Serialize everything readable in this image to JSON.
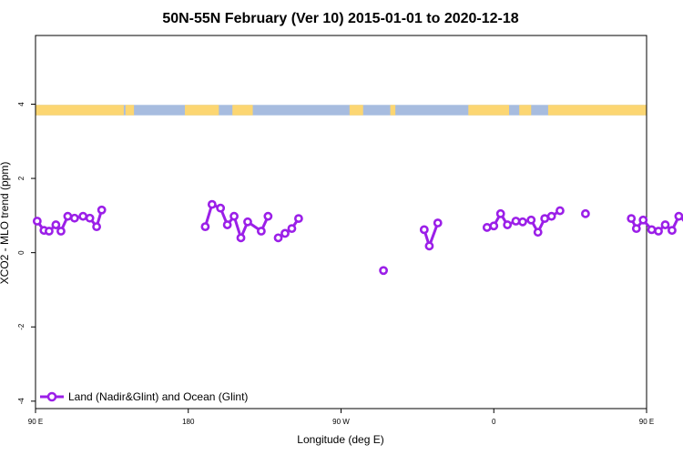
{
  "chart_data": {
    "type": "line",
    "title": "50N-55N February (Ver 10)   2015-01-01 to 2020-12-18",
    "xlabel": "Longitude (deg E)",
    "ylabel": "XCO2 - MLO trend (ppm)",
    "xlim": [
      90,
      450
    ],
    "ylim": [
      -4.2,
      5.85
    ],
    "xticks": [
      {
        "value": 90,
        "label": "90 E"
      },
      {
        "value": 180,
        "label": "180"
      },
      {
        "value": 270,
        "label": "90 W"
      },
      {
        "value": 360,
        "label": "0"
      },
      {
        "value": 450,
        "label": "90 E"
      },
      {
        "value": 540,
        "label": "180"
      }
    ],
    "yticks": [
      {
        "value": -4,
        "label": "-4"
      },
      {
        "value": -2,
        "label": "-2"
      },
      {
        "value": 0,
        "label": "0"
      },
      {
        "value": 2,
        "label": "2"
      },
      {
        "value": 4,
        "label": "4"
      }
    ],
    "land_ocean_strip": {
      "y_range": [
        3.7,
        3.98
      ],
      "land_color": "#fcd672",
      "ocean_color": "#a7bcdf",
      "land_lon_ranges": [
        [
          90,
          142
        ],
        [
          143,
          148
        ],
        [
          178,
          198
        ],
        [
          206,
          218
        ],
        [
          275,
          283
        ],
        [
          299,
          302
        ],
        [
          345,
          369
        ],
        [
          375,
          382
        ],
        [
          392,
          482
        ],
        [
          487,
          492
        ],
        [
          493,
          508
        ],
        [
          528,
          546
        ]
      ]
    },
    "series": [
      {
        "name": "Land (Nadir&Glint) and Ocean (Glint)",
        "color": "#9b1fe8",
        "segments": [
          [
            [
              91,
              0.85
            ],
            [
              95,
              0.6
            ],
            [
              98,
              0.58
            ],
            [
              102,
              0.75
            ],
            [
              105,
              0.58
            ],
            [
              109,
              0.98
            ],
            [
              113,
              0.93
            ],
            [
              118,
              0.98
            ],
            [
              122,
              0.93
            ],
            [
              126,
              0.7
            ],
            [
              129,
              1.15
            ]
          ],
          [
            [
              190,
              0.7
            ],
            [
              194,
              1.3
            ],
            [
              199,
              1.2
            ],
            [
              203,
              0.75
            ],
            [
              207,
              0.98
            ],
            [
              211,
              0.4
            ],
            [
              215,
              0.83
            ],
            [
              223,
              0.58
            ],
            [
              227,
              0.98
            ]
          ],
          [
            [
              233,
              0.4
            ],
            [
              237,
              0.52
            ],
            [
              241,
              0.65
            ],
            [
              245,
              0.92
            ]
          ],
          [
            [
              295,
              -0.48
            ]
          ],
          [
            [
              319,
              0.62
            ],
            [
              322,
              0.18
            ],
            [
              327,
              0.8
            ]
          ],
          [
            [
              356,
              0.68
            ],
            [
              360,
              0.72
            ],
            [
              364,
              1.05
            ],
            [
              368,
              0.75
            ],
            [
              373,
              0.85
            ],
            [
              377,
              0.83
            ],
            [
              382,
              0.88
            ],
            [
              386,
              0.55
            ],
            [
              390,
              0.92
            ],
            [
              394,
              0.98
            ],
            [
              399,
              1.13
            ]
          ],
          [
            [
              414,
              1.05
            ]
          ],
          [
            [
              441,
              0.92
            ],
            [
              444,
              0.65
            ],
            [
              448,
              0.88
            ],
            [
              453,
              0.62
            ],
            [
              457,
              0.58
            ],
            [
              461,
              0.75
            ],
            [
              465,
              0.6
            ],
            [
              469,
              0.98
            ],
            [
              473,
              0.93
            ],
            [
              478,
              0.98
            ],
            [
              482,
              0.93
            ],
            [
              486,
              0.7
            ],
            [
              490,
              1.15
            ]
          ]
        ]
      }
    ],
    "legend_position": "bottom-left",
    "grid": false
  }
}
